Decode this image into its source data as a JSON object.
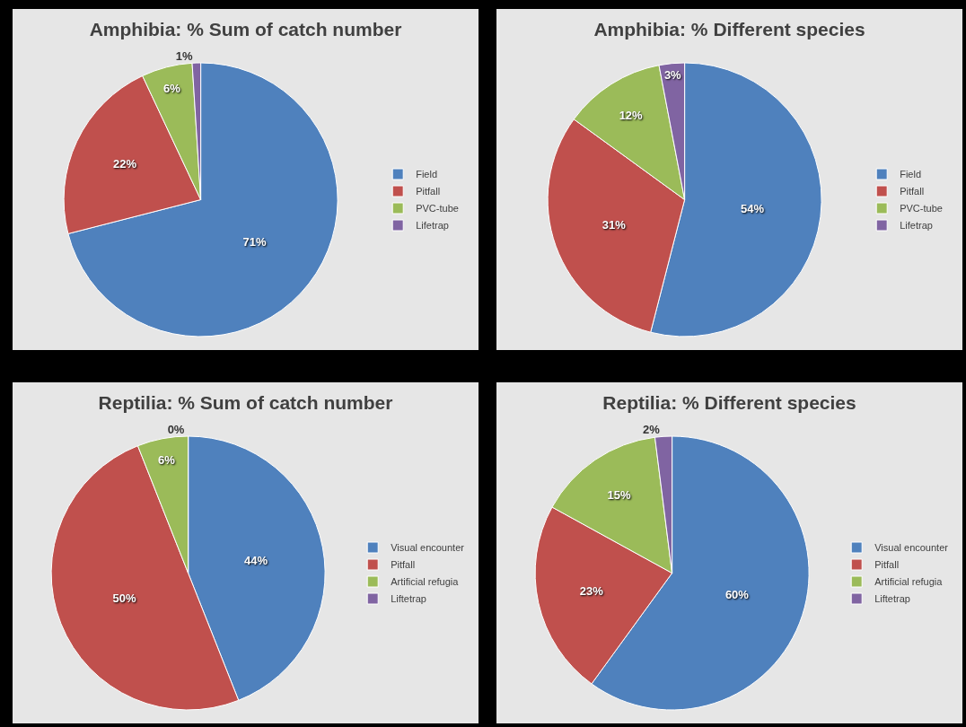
{
  "chart_data": [
    {
      "type": "pie",
      "title": "Amphibia: % Sum of catch number",
      "categories": [
        "Field",
        "Pitfall",
        "PVC-tube",
        "Lifetrap"
      ],
      "values": [
        71,
        22,
        6,
        1
      ],
      "value_labels": [
        "71%",
        "22%",
        "6%",
        "1%"
      ],
      "colors": [
        "#4f81bd",
        "#c0504d",
        "#9bbb59",
        "#8064a2"
      ],
      "legend": "right"
    },
    {
      "type": "pie",
      "title": "Amphibia: % Different species",
      "categories": [
        "Field",
        "Pitfall",
        "PVC-tube",
        "Lifetrap"
      ],
      "values": [
        54,
        31,
        12,
        3
      ],
      "value_labels": [
        "54%",
        "31%",
        "12%",
        "3%"
      ],
      "colors": [
        "#4f81bd",
        "#c0504d",
        "#9bbb59",
        "#8064a2"
      ],
      "legend": "right"
    },
    {
      "type": "pie",
      "title": "Reptilia: % Sum of catch number",
      "categories": [
        "Visual encounter",
        "Pitfall",
        "Artificial refugia",
        "Liftetrap"
      ],
      "values": [
        44,
        50,
        6,
        0
      ],
      "value_labels": [
        "44%",
        "50%",
        "6%",
        "0%"
      ],
      "colors": [
        "#4f81bd",
        "#c0504d",
        "#9bbb59",
        "#8064a2"
      ],
      "legend": "right"
    },
    {
      "type": "pie",
      "title": "Reptilia: % Different species",
      "categories": [
        "Visual encounter",
        "Pitfall",
        "Artificial refugia",
        "Liftetrap"
      ],
      "values": [
        60,
        23,
        15,
        2
      ],
      "value_labels": [
        "60%",
        "23%",
        "15%",
        "2%"
      ],
      "colors": [
        "#4f81bd",
        "#c0504d",
        "#9bbb59",
        "#8064a2"
      ],
      "legend": "right"
    }
  ]
}
